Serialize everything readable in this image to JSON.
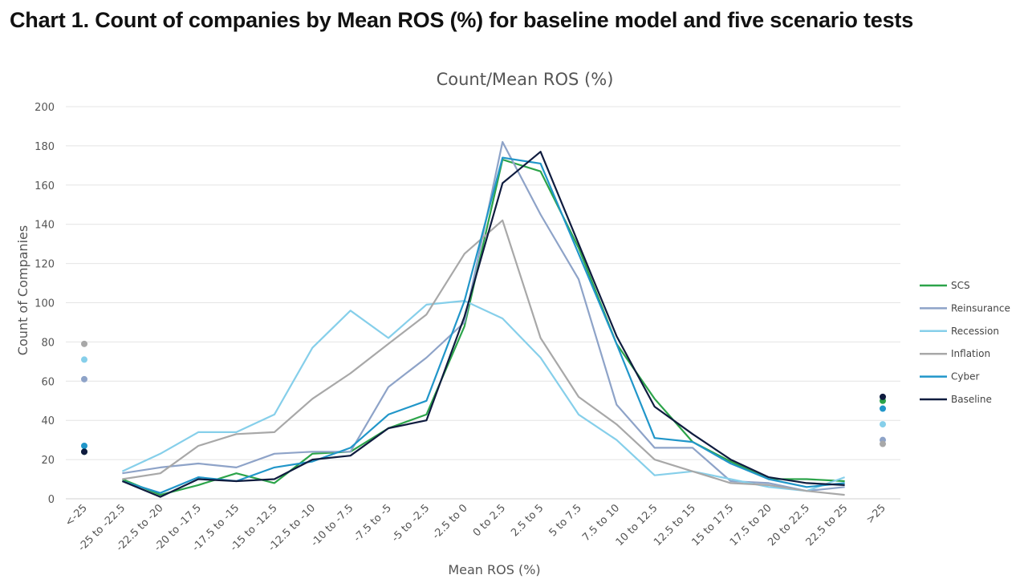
{
  "page_title": "Chart 1. Count of companies by Mean ROS (%) for baseline model and five scenario tests",
  "chart_data": {
    "type": "line",
    "title": "Count/Mean ROS (%)",
    "xlabel": "Mean ROS (%)",
    "ylabel": "Count of Companies",
    "ylim": [
      0,
      200
    ],
    "yticks": [
      0,
      20,
      40,
      60,
      80,
      100,
      120,
      140,
      160,
      180,
      200
    ],
    "grid": true,
    "legend_position": "right",
    "categories": [
      "<-25",
      "-25 to -22.5",
      "-22.5 to -20",
      "-20 to -17.5",
      "-17.5 to -15",
      "-15 to -12.5",
      "-12.5 to -10",
      "-10 to -7.5",
      "-7.5 to -5",
      "-5 to -2.5",
      "-2.5 to 0",
      "0 to 2.5",
      "2.5 to 5",
      "5 to 7.5",
      "7.5 to 10",
      "10 to 12.5",
      "12.5 to 15",
      "15 to 17.5",
      "17.5 to 20",
      "20 to 22.5",
      "22.5 to 25",
      ">25"
    ],
    "series": [
      {
        "name": "SCS",
        "color": "#2ca44a",
        "values": [
          24,
          10,
          2,
          7,
          13,
          8,
          23,
          24,
          36,
          43,
          88,
          173,
          167,
          128,
          79,
          51,
          29,
          19,
          10,
          10,
          9,
          50
        ]
      },
      {
        "name": "Reinsurance",
        "color": "#8ea3c8",
        "values": [
          61,
          13,
          16,
          18,
          16,
          23,
          24,
          24,
          57,
          72,
          90,
          182,
          145,
          112,
          48,
          26,
          26,
          9,
          8,
          4,
          6,
          30
        ]
      },
      {
        "name": "Recession",
        "color": "#86cfea",
        "values": [
          71,
          14,
          23,
          34,
          34,
          43,
          77,
          96,
          82,
          99,
          101,
          92,
          72,
          43,
          30,
          12,
          14,
          10,
          6,
          4,
          11,
          38
        ]
      },
      {
        "name": "Inflation",
        "color": "#a8a8a8",
        "values": [
          79,
          10,
          13,
          27,
          33,
          34,
          51,
          64,
          79,
          94,
          125,
          142,
          82,
          52,
          38,
          20,
          14,
          8,
          7,
          4,
          2,
          28
        ]
      },
      {
        "name": "Cyber",
        "color": "#2196c9",
        "values": [
          27,
          9,
          3,
          11,
          9,
          16,
          19,
          26,
          43,
          50,
          101,
          174,
          171,
          125,
          79,
          31,
          29,
          18,
          10,
          6,
          8,
          46
        ]
      },
      {
        "name": "Baseline",
        "color": "#0f1c3f",
        "values": [
          24,
          9,
          1,
          10,
          9,
          10,
          20,
          22,
          36,
          40,
          93,
          161,
          177,
          130,
          83,
          47,
          33,
          20,
          11,
          8,
          7,
          52
        ]
      }
    ]
  }
}
